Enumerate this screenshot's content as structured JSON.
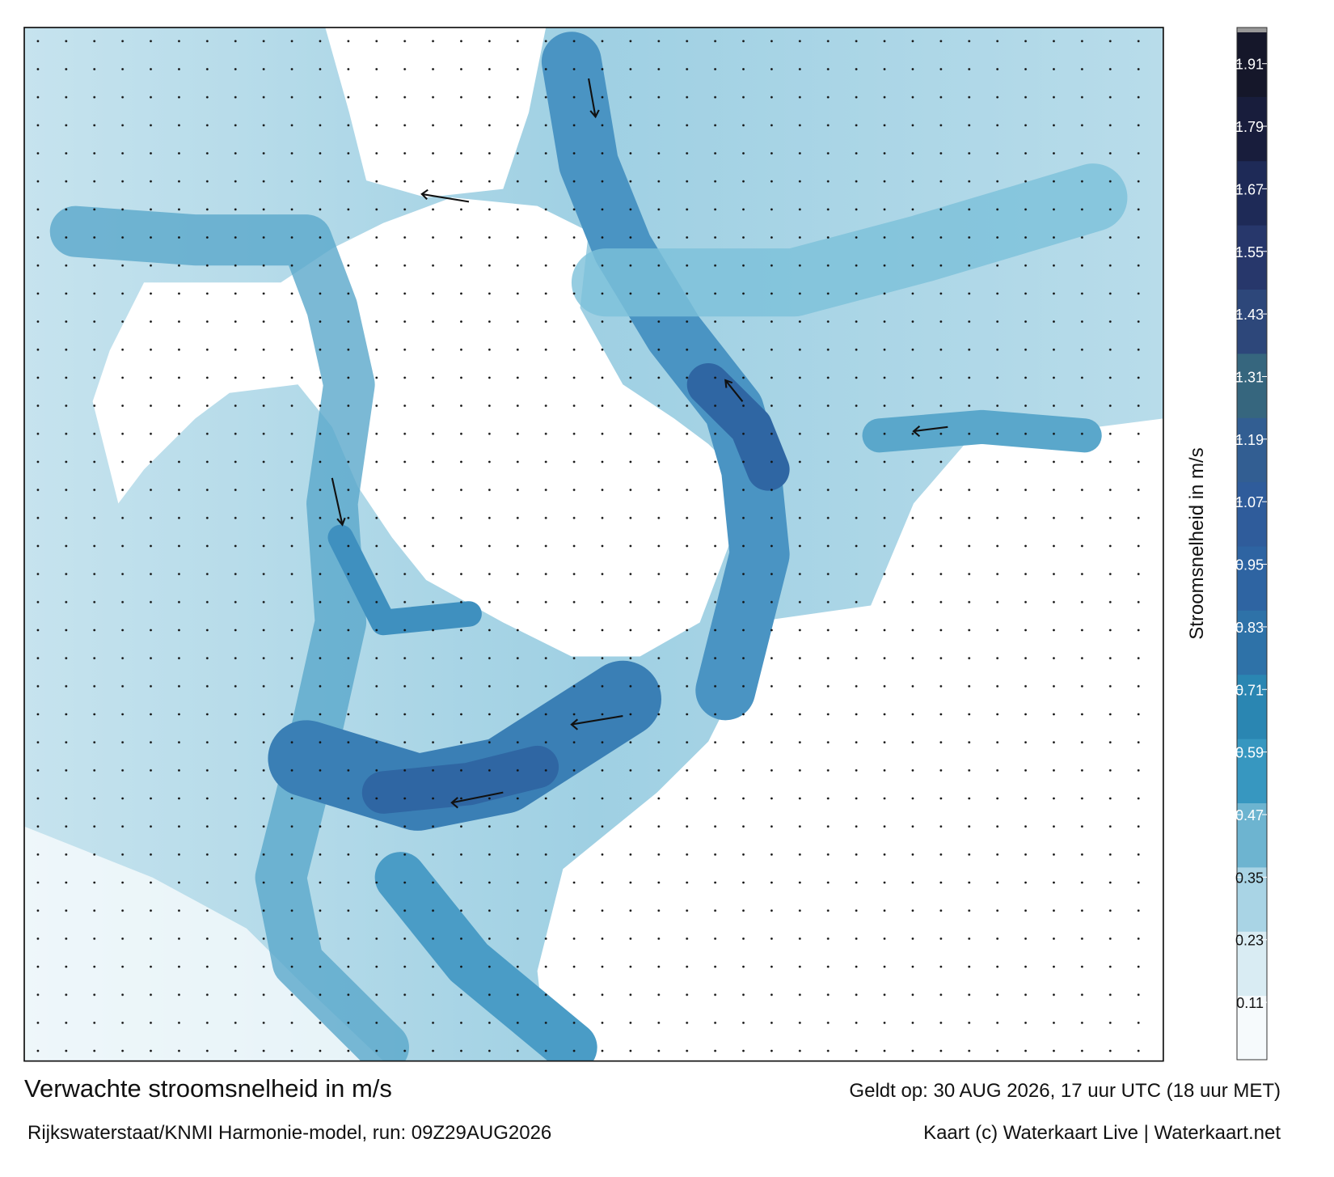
{
  "title": "Verwachte stroomsnelheid in m/s",
  "subtitle": "Rijkswaterstaat/KNMI Harmonie-model, run: 09Z29AUG2026",
  "valid": "Geldt op: 30 AUG 2026, 17 uur UTC (18 uur MET)",
  "credit": "Kaart (c) Waterkaart Live | Waterkaart.net",
  "colorbar": {
    "label": "Stroomsnelheid in m/s",
    "lim": [
      0,
      1.97
    ],
    "ticks": [
      0.11,
      0.23,
      0.35,
      0.47,
      0.59,
      0.71,
      0.83,
      0.95,
      1.07,
      1.19,
      1.31,
      1.43,
      1.55,
      1.67,
      1.79,
      1.91
    ],
    "colors": [
      "#f6fafc",
      "#d9ecf3",
      "#a9d4e5",
      "#6db4d0",
      "#3797c0",
      "#2a86b2",
      "#2e72a8",
      "#2e64a2",
      "#2f5c9b",
      "#325e92",
      "#36667e",
      "#2d477a",
      "#27376b",
      "#1e2a57",
      "#181d3c",
      "#15172a"
    ]
  }
}
